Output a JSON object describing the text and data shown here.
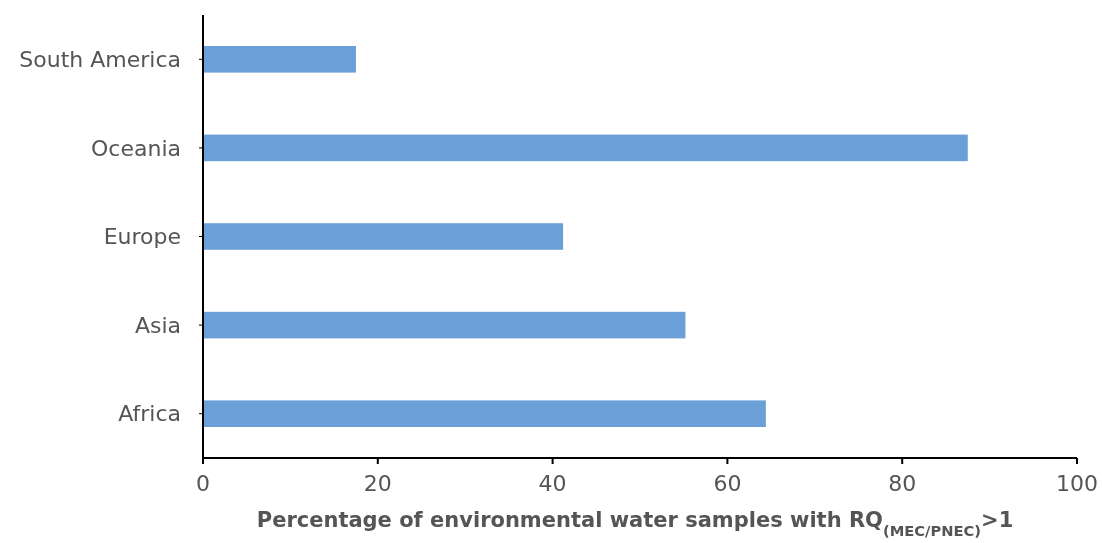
{
  "chart_data": {
    "type": "bar",
    "orientation": "horizontal",
    "xlabel": "Percentage of environmental water samples with RQ$_{(MEC/PNEC)}$>1",
    "categories": [
      "South America",
      "Oceania",
      "Europe",
      "Asia",
      "Africa"
    ],
    "values": [
      17.5,
      87.5,
      41.2,
      55.2,
      64.4
    ],
    "color": "#6a9fd8",
    "xlim": [
      0,
      100
    ],
    "xticks": [
      0,
      20,
      40,
      60,
      80,
      100
    ],
    "grid": false
  }
}
